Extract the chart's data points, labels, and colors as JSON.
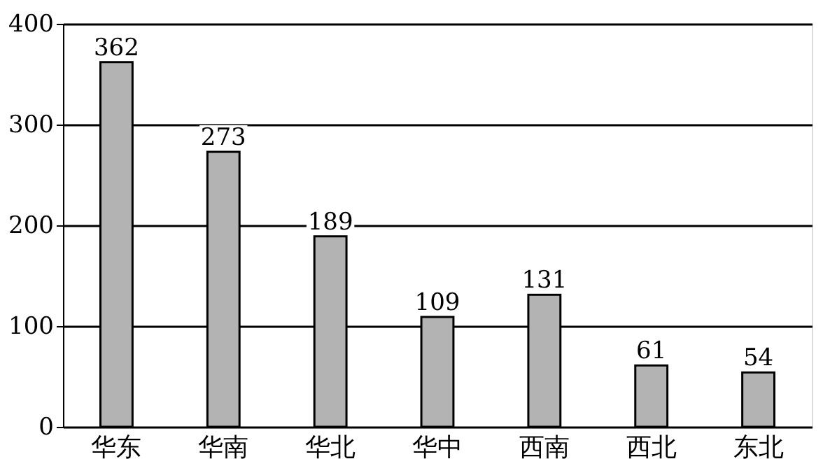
{
  "chart_data": {
    "type": "bar",
    "categories": [
      "华东",
      "华南",
      "华北",
      "华中",
      "西南",
      "西北",
      "东北"
    ],
    "values": [
      362,
      273,
      189,
      109,
      131,
      61,
      54
    ],
    "color": "#b3b3b3",
    "ylim": [
      0,
      400
    ],
    "yticks": [
      0,
      100,
      200,
      300,
      400
    ],
    "grid": "y",
    "data_labels": true
  }
}
